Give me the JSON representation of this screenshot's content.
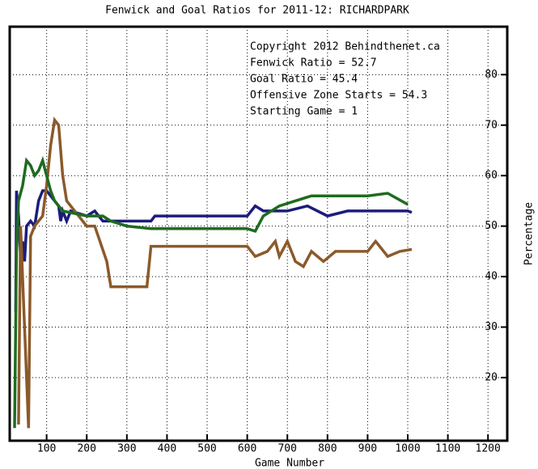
{
  "chart_data": {
    "type": "line",
    "title": "Fenwick and Goal Ratios for 2011-12: RICHARDPARK",
    "xlabel": "Game Number",
    "ylabel": "Percentage",
    "annotations": [
      "Copyright 2012 Behindthenet.ca",
      "Starting Game = 1"
    ],
    "xlim": [
      8,
      1248
    ],
    "ylim": [
      7.5,
      89.5
    ],
    "xticks": [
      100,
      200,
      300,
      400,
      500,
      600,
      700,
      800,
      900,
      1000,
      1100,
      1200
    ],
    "yticks": [
      20,
      30,
      40,
      50,
      60,
      70,
      80
    ],
    "grid": true,
    "series": [
      {
        "name": "Fenwick Ratio = 52.7",
        "color": "#1c1c7c",
        "x": [
          23,
          25,
          30,
          35,
          40,
          45,
          50,
          60,
          70,
          80,
          90,
          100,
          110,
          120,
          130,
          135,
          140,
          150,
          160,
          200,
          220,
          240,
          300,
          360,
          370,
          600,
          620,
          640,
          700,
          750,
          800,
          850,
          900,
          950,
          1000,
          1010
        ],
        "values": [
          33,
          57,
          52,
          44,
          47,
          43,
          50,
          51,
          50,
          55,
          57,
          57,
          56,
          55,
          54,
          51,
          53,
          51,
          53,
          52,
          53,
          51,
          51,
          51,
          52,
          52,
          54,
          53,
          53,
          54,
          52,
          53,
          53,
          53,
          53,
          52.7
        ]
      },
      {
        "name": "Goal Ratio = 45.4",
        "color": "#8b5a2b",
        "x": [
          30,
          35,
          55,
          60,
          70,
          90,
          100,
          110,
          120,
          130,
          140,
          150,
          200,
          220,
          250,
          260,
          350,
          360,
          600,
          620,
          650,
          670,
          680,
          700,
          710,
          720,
          740,
          760,
          790,
          820,
          900,
          920,
          950,
          980,
          1010
        ],
        "values": [
          10.7,
          50,
          10,
          48,
          50,
          52,
          58,
          66,
          71,
          70,
          60,
          55,
          50,
          50,
          43,
          38,
          38,
          46,
          46,
          44,
          45,
          47,
          44,
          47,
          45,
          43,
          42,
          45,
          43,
          45,
          45,
          47,
          44,
          45,
          45.4
        ]
      },
      {
        "name": "Offensive Zone Starts = 54.3",
        "color": "#1f6b1f",
        "x": [
          20,
          25,
          30,
          40,
          50,
          60,
          70,
          80,
          90,
          100,
          110,
          120,
          140,
          200,
          240,
          260,
          300,
          360,
          600,
          620,
          640,
          680,
          720,
          760,
          800,
          850,
          900,
          950,
          1000
        ],
        "values": [
          10,
          45,
          55,
          58,
          63,
          62,
          60,
          61,
          63,
          60,
          57,
          55,
          53,
          52,
          52,
          51,
          50,
          49.5,
          49.5,
          49,
          52,
          54,
          55,
          56,
          56,
          56,
          56,
          56.5,
          54.3
        ]
      }
    ]
  }
}
